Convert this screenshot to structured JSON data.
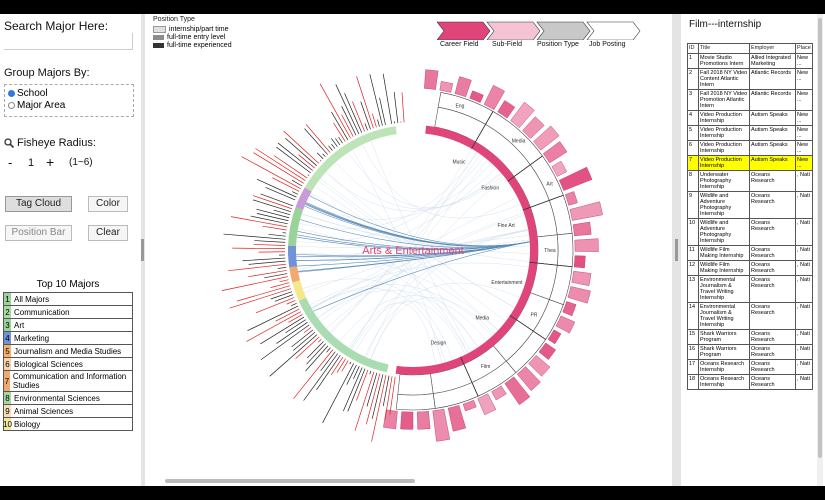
{
  "left": {
    "search_label": "Search Major Here:",
    "search_value": "",
    "group_label": "Group Majors By:",
    "group_options": [
      {
        "label": "School",
        "selected": true
      },
      {
        "label": "Major Area",
        "selected": false
      }
    ],
    "fisheye_label": "Fisheye Radius:",
    "fisheye_minus": "-",
    "fisheye_value": "1",
    "fisheye_plus": "+",
    "fisheye_range": "(1~6)",
    "buttons": {
      "tag_cloud": "Tag Cloud",
      "color": "Color",
      "position_bar": "Position Bar",
      "clear": "Clear"
    },
    "top10_title": "Top 10 Majors",
    "top10": [
      {
        "num": "1",
        "name": "All Majors",
        "color": "#9ad29a"
      },
      {
        "num": "2",
        "name": "Communication",
        "color": "#a6dca0"
      },
      {
        "num": "3",
        "name": "Art",
        "color": "#9ad39a"
      },
      {
        "num": "4",
        "name": "Marketing",
        "color": "#6f92d8"
      },
      {
        "num": "5",
        "name": "Journalism and Media Studies",
        "color": "#f3b36b"
      },
      {
        "num": "6",
        "name": "Biological Sciences",
        "color": "#f7d4b0"
      },
      {
        "num": "7",
        "name": "Communication and Information Studies",
        "color": "#f2a96e"
      },
      {
        "num": "8",
        "name": "Environmental Sciences",
        "color": "#a5d6a0"
      },
      {
        "num": "9",
        "name": "Animal Sciences",
        "color": "#f7dcb8"
      },
      {
        "num": "10",
        "name": "Biology",
        "color": "#f4e6a0"
      }
    ]
  },
  "center": {
    "legend_title": "Position Type",
    "legend": [
      {
        "label": "internship/part time",
        "color": "#e0e0e0"
      },
      {
        "label": "full-time entry level",
        "color": "#8c8c8c"
      },
      {
        "label": "full-time experienced",
        "color": "#333333"
      }
    ],
    "breadcrumb": [
      {
        "label": "Career Field",
        "color": "#e0457a"
      },
      {
        "label": "Sub-Field",
        "color": "#f4c4d4"
      },
      {
        "label": "Position Type",
        "color": "#c8c8c8"
      },
      {
        "label": "Job Posting",
        "color": "#ffffff"
      }
    ],
    "center_label": "Arts & Entertainment",
    "subfields": [
      "Music",
      "Fashion",
      "Fine Art",
      "Entertainment",
      "Media",
      "Design"
    ],
    "major_labels": [
      "Eng",
      "Media",
      "Art",
      "Thea",
      "PR",
      "Film"
    ],
    "accent": "#e0457a"
  },
  "right": {
    "title": "Film---internship",
    "headers": [
      "ID",
      "Title",
      "Employer",
      "Place"
    ],
    "rows": [
      {
        "id": "1",
        "title": "Movie Studio Promotions Intern",
        "employer": "Allied Integrated Marketing",
        "place": "New ...",
        "hl": false
      },
      {
        "id": "2",
        "title": "Fall 2018 NY Video Content Atlantic Intern",
        "employer": "Atlantic Records",
        "place": "New ...",
        "hl": false
      },
      {
        "id": "3",
        "title": "Fall 2018 NY Video Promotion Atlantic Intern",
        "employer": "Atlantic Records",
        "place": "New ...",
        "hl": false
      },
      {
        "id": "4",
        "title": "Video Production Internship",
        "employer": "Autism Speaks",
        "place": "New ...",
        "hl": false
      },
      {
        "id": "5",
        "title": "Video Production Internship",
        "employer": "Autism Speaks",
        "place": "New ...",
        "hl": false
      },
      {
        "id": "6",
        "title": "Video Production Internship",
        "employer": "Autism Speaks",
        "place": "New ...",
        "hl": false
      },
      {
        "id": "7",
        "title": "Video Production Internship",
        "employer": "Autism Speaks",
        "place": "New ...",
        "hl": true
      },
      {
        "id": "8",
        "title": "Underwater Photography Internship",
        "employer": "Oceans Research",
        "place": ", Nati",
        "hl": false
      },
      {
        "id": "9",
        "title": "Wildlife and Adventure Photography Internship",
        "employer": "Oceans Research",
        "place": ", Nati",
        "hl": false
      },
      {
        "id": "10",
        "title": "Wildlife and Adventure Photography Internship",
        "employer": "Oceans Research",
        "place": ", Nati",
        "hl": false
      },
      {
        "id": "11",
        "title": "Wildlife Film Making Internship",
        "employer": "Oceans Research",
        "place": ", Nati",
        "hl": false
      },
      {
        "id": "12",
        "title": "Wildlife Film Making Internship",
        "employer": "Oceans Research",
        "place": ", Nati",
        "hl": false
      },
      {
        "id": "13",
        "title": "Environmental Journalism & Travel Writing Internship",
        "employer": "Oceans Research",
        "place": ", Nati",
        "hl": false
      },
      {
        "id": "14",
        "title": "Environmental Journalism & Travel Writing Internship",
        "employer": "Oceans Research",
        "place": ", Nati",
        "hl": false
      },
      {
        "id": "15",
        "title": "Shark Warriors Program",
        "employer": "Oceans Research",
        "place": ", Nati",
        "hl": false
      },
      {
        "id": "16",
        "title": "Shark Warriors Program",
        "employer": "Oceans Research",
        "place": ", Nati",
        "hl": false
      },
      {
        "id": "17",
        "title": "Oceans Research Internship",
        "employer": "Oceans Research",
        "place": ", Nati",
        "hl": false
      },
      {
        "id": "18",
        "title": "Oceans Research Internship",
        "employer": "Oceans Research",
        "place": ", Nati",
        "hl": false
      }
    ]
  }
}
